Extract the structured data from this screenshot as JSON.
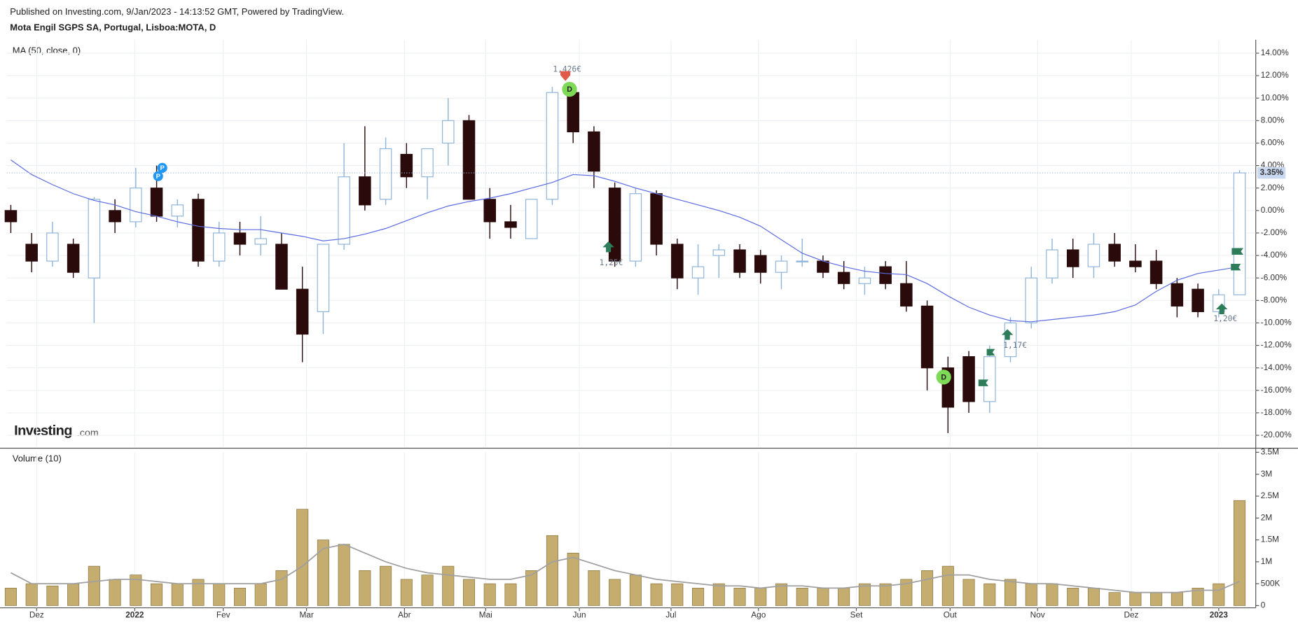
{
  "header": {
    "published": "Published on Investing.com, 9/Jan/2023 - 14:13:52 GMT, Powered by TradingView.",
    "symbol": "Mota Engil SGPS SA, Portugal, Lisboa:MOTA, D"
  },
  "logo": {
    "brand": "Investing",
    "suffix": ".com"
  },
  "chart_data": [
    {
      "type": "candlestick",
      "title": "MA (50, close, 0)",
      "open": [
        0,
        -3,
        -4.5,
        -3,
        -6,
        0,
        -1,
        2,
        -0.5,
        1,
        -4.5,
        -2,
        -3,
        -3,
        -7,
        -9,
        -3,
        3,
        1,
        5,
        3,
        6,
        8,
        1,
        -1,
        -2.5,
        1,
        10.5,
        7,
        2,
        -4.5,
        1.5,
        -3,
        -6,
        -4,
        -3.5,
        -4,
        -5.5,
        -4.5,
        -4.5,
        -5.5,
        -6.5,
        -5,
        -6.5,
        -8.5,
        -14,
        -13,
        -17,
        -13,
        -10,
        -6,
        -3.5,
        -5,
        -3,
        -4.5,
        -4.5,
        -6.5,
        -7,
        -9,
        -7.5
      ],
      "high": [
        0.5,
        -2,
        -1,
        -2.5,
        1.2,
        1,
        3.8,
        4,
        1,
        1.5,
        -1,
        -1,
        -0.5,
        -2,
        -5,
        -3,
        6,
        7.5,
        6.5,
        6,
        5.5,
        10,
        8.5,
        2,
        0.5,
        1,
        11,
        11.2,
        7.5,
        2.5,
        2,
        1.8,
        -2.5,
        -3,
        -3,
        -3,
        -3.5,
        -4,
        -2.5,
        -4,
        -4.5,
        -5,
        -4.5,
        -4.5,
        -8,
        -13,
        -12.5,
        -12,
        -9.5,
        -5,
        -2.5,
        -2.5,
        -2,
        -2,
        -3,
        -3.5,
        -6,
        -6.5,
        -7,
        3.6
      ],
      "low": [
        -2,
        -5.5,
        -5,
        -6,
        -10,
        -2,
        -1.5,
        -1,
        -1.5,
        -5,
        -5,
        -4,
        -4,
        -7,
        -13.5,
        -11,
        -3.5,
        0,
        0.5,
        2,
        1,
        4,
        1,
        -2.5,
        -2.5,
        -2.5,
        0.5,
        6,
        2,
        -5,
        -5,
        -4,
        -7,
        -7.5,
        -6,
        -6,
        -6.5,
        -7,
        -5,
        -6,
        -7,
        -7.5,
        -7,
        -9,
        -16,
        -19.8,
        -18,
        -18,
        -13.5,
        -10.5,
        -6.5,
        -6,
        -6,
        -5,
        -5.5,
        -7,
        -9.5,
        -9.5,
        -9.5,
        -7.5
      ],
      "close": [
        -1,
        -4.5,
        -2,
        -5.5,
        1,
        -1,
        2,
        -0.5,
        0.5,
        -4.5,
        -2,
        -3,
        -2.5,
        -7,
        -11,
        -3,
        3,
        0.5,
        5.5,
        3,
        5.5,
        8,
        1,
        -1,
        -1.5,
        1,
        10.5,
        7,
        3.5,
        -4.5,
        1.5,
        -3,
        -6,
        -5,
        -3.5,
        -5.5,
        -5.5,
        -4.5,
        -4.5,
        -5.5,
        -6.5,
        -6,
        -6.5,
        -8.5,
        -14,
        -17.5,
        -17,
        -13,
        -10,
        -6,
        -3.5,
        -5,
        -3,
        -4.5,
        -5,
        -6.5,
        -8.5,
        -9,
        -7.5,
        3.35
      ],
      "last_value_label": "3.35%",
      "up_color": "#ffffff",
      "up_border": "#8fb4d9",
      "down_color": "#2a0a0a",
      "ma": {
        "color": "#5b6be0",
        "values": [
          4.5,
          3.2,
          2.3,
          1.5,
          0.9,
          0.5,
          -0.1,
          -0.5,
          -1,
          -1.4,
          -1.6,
          -1.7,
          -1.7,
          -2,
          -2.3,
          -2.7,
          -2.5,
          -2.1,
          -1.6,
          -0.9,
          -0.2,
          0.4,
          0.8,
          1.1,
          1.5,
          2,
          2.5,
          3.2,
          3.1,
          2.6,
          2,
          1.5,
          1,
          0.5,
          0,
          -0.6,
          -1.4,
          -2.6,
          -3.8,
          -4.5,
          -5,
          -5.4,
          -5.6,
          -5.7,
          -6.5,
          -7.6,
          -8.6,
          -9.3,
          -9.8,
          -9.9,
          -9.7,
          -9.5,
          -9.3,
          -9,
          -8.4,
          -7.2,
          -6.2,
          -5.6,
          -5.3,
          -5
        ]
      },
      "ylim": [
        -21,
        15.2
      ],
      "yticks": [
        {
          "value": 14,
          "label": "14.00%"
        },
        {
          "value": 12,
          "label": "12.00%"
        },
        {
          "value": 10,
          "label": "10.00%"
        },
        {
          "value": 8,
          "label": "8.00%"
        },
        {
          "value": 6,
          "label": "6.00%"
        },
        {
          "value": 4,
          "label": "4.00%"
        },
        {
          "value": 2,
          "label": "2.00%"
        },
        {
          "value": 0,
          "label": "0.00%"
        },
        {
          "value": -2,
          "label": "-2.00%"
        },
        {
          "value": -4,
          "label": "-4.00%"
        },
        {
          "value": -6,
          "label": "-6.00%"
        },
        {
          "value": -8,
          "label": "-8.00%"
        },
        {
          "value": -10,
          "label": "-10.00%"
        },
        {
          "value": -12,
          "label": "-12.00%"
        },
        {
          "value": -14,
          "label": "-14.00%"
        },
        {
          "value": -16,
          "label": "-16.00%"
        },
        {
          "value": -18,
          "label": "-18.00%"
        },
        {
          "value": -20,
          "label": "-20.00%"
        }
      ],
      "annotations": [
        "1,426€",
        "1,25€",
        "1,17€",
        "1,20€"
      ],
      "event_markers": [
        "P",
        "P",
        "D",
        "D"
      ],
      "grid": true
    },
    {
      "type": "bar",
      "title": "Volume (10)",
      "color": "#c4ad6f",
      "border": "#8a7640",
      "values": [
        0.4,
        0.5,
        0.45,
        0.5,
        0.9,
        0.6,
        0.7,
        0.5,
        0.5,
        0.6,
        0.5,
        0.4,
        0.5,
        0.8,
        2.2,
        1.5,
        1.4,
        0.8,
        0.9,
        0.6,
        0.7,
        0.9,
        0.6,
        0.5,
        0.5,
        0.8,
        1.6,
        1.2,
        0.8,
        0.6,
        0.7,
        0.5,
        0.5,
        0.4,
        0.5,
        0.4,
        0.4,
        0.5,
        0.4,
        0.4,
        0.4,
        0.5,
        0.5,
        0.6,
        0.8,
        0.9,
        0.6,
        0.5,
        0.6,
        0.5,
        0.5,
        0.4,
        0.4,
        0.3,
        0.3,
        0.3,
        0.3,
        0.4,
        0.5,
        2.4
      ],
      "ma": {
        "color": "#a0a0a0",
        "values": [
          0.75,
          0.5,
          0.5,
          0.5,
          0.55,
          0.6,
          0.6,
          0.55,
          0.5,
          0.5,
          0.5,
          0.5,
          0.5,
          0.6,
          0.9,
          1.3,
          1.4,
          1.2,
          1,
          0.85,
          0.75,
          0.7,
          0.65,
          0.6,
          0.6,
          0.7,
          1,
          1.1,
          0.95,
          0.8,
          0.7,
          0.6,
          0.55,
          0.5,
          0.45,
          0.45,
          0.4,
          0.45,
          0.45,
          0.4,
          0.4,
          0.45,
          0.45,
          0.5,
          0.6,
          0.7,
          0.7,
          0.6,
          0.55,
          0.5,
          0.5,
          0.45,
          0.4,
          0.35,
          0.3,
          0.3,
          0.3,
          0.35,
          0.35,
          0.55
        ]
      },
      "ylim": [
        -0.05,
        3.5
      ],
      "yticks": [
        0,
        {
          "value": 0.5,
          "label": "500K"
        },
        {
          "value": 1,
          "label": "1M"
        },
        {
          "value": 1.5,
          "label": "1.5M"
        },
        {
          "value": 2,
          "label": "2M"
        },
        {
          "value": 2.5,
          "label": "2.5M"
        },
        {
          "value": 3,
          "label": "3M"
        },
        {
          "value": 3.5,
          "label": "3.5M"
        }
      ],
      "xticks": [
        {
          "value": 1.24,
          "label": "Dez"
        },
        {
          "value": 5.95,
          "label": "2022"
        },
        {
          "value": 10.2,
          "label": "Fev"
        },
        {
          "value": 14.2,
          "label": "Mar"
        },
        {
          "value": 18.9,
          "label": "Abr"
        },
        {
          "value": 22.8,
          "label": "Mai"
        },
        {
          "value": 27.3,
          "label": "Jun"
        },
        {
          "value": 31.7,
          "label": "Jul"
        },
        {
          "value": 35.9,
          "label": "Ago"
        },
        {
          "value": 40.6,
          "label": "Set"
        },
        {
          "value": 45.1,
          "label": "Out"
        },
        {
          "value": 49.3,
          "label": "Nov"
        },
        {
          "value": 53.8,
          "label": "Dez"
        },
        {
          "value": 58,
          "label": "2023"
        }
      ],
      "xlim": [
        -0.2,
        59.5
      ]
    }
  ]
}
